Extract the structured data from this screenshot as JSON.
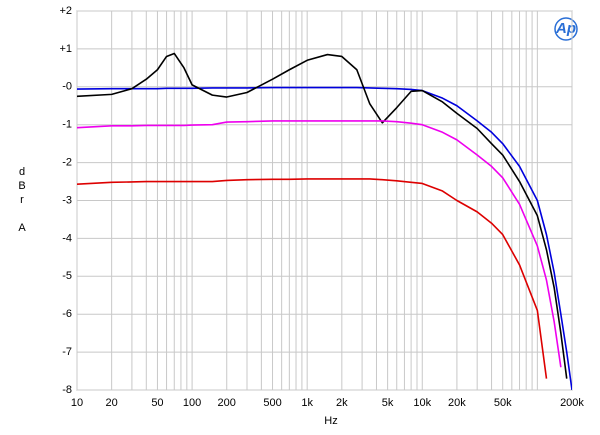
{
  "chart_data": {
    "type": "line",
    "logo": "Ap",
    "xlabel": "Hz",
    "ylabel": [
      "d",
      "B",
      "r",
      "A"
    ],
    "xscale": "log",
    "grid": true,
    "x": [
      10,
      20,
      30,
      40,
      50,
      60,
      70,
      85,
      100,
      150,
      200,
      300,
      500,
      700,
      1000,
      1500,
      2000,
      2700,
      3500,
      4500,
      6000,
      8000,
      10000,
      15000,
      20000,
      30000,
      40000,
      50000,
      70000,
      100000,
      120000,
      140000,
      160000,
      180000,
      200000
    ],
    "series": [
      {
        "color": "#0000dd",
        "values": [
          -0.06,
          -0.05,
          -0.05,
          -0.05,
          -0.05,
          -0.04,
          -0.04,
          -0.04,
          -0.04,
          -0.03,
          -0.03,
          -0.03,
          -0.02,
          -0.02,
          -0.02,
          -0.02,
          -0.02,
          -0.02,
          -0.03,
          -0.04,
          -0.05,
          -0.07,
          -0.1,
          -0.3,
          -0.5,
          -0.9,
          -1.2,
          -1.5,
          -2.1,
          -3.0,
          -3.9,
          -4.9,
          -6.0,
          -7.0,
          -8.0
        ]
      },
      {
        "color": "#000000",
        "values": [
          -0.25,
          -0.2,
          -0.05,
          0.2,
          0.45,
          0.8,
          0.88,
          0.5,
          0.05,
          -0.22,
          -0.27,
          -0.15,
          0.2,
          0.45,
          0.7,
          0.85,
          0.8,
          0.45,
          -0.45,
          -0.95,
          -0.55,
          -0.12,
          -0.1,
          -0.4,
          -0.7,
          -1.1,
          -1.5,
          -1.8,
          -2.5,
          -3.4,
          -4.3,
          -5.3,
          -6.5,
          -7.7,
          null
        ]
      },
      {
        "color": "#ee00ee",
        "values": [
          -1.08,
          -1.03,
          -1.03,
          -1.02,
          -1.02,
          -1.02,
          -1.02,
          -1.02,
          -1.01,
          -1.0,
          -0.93,
          -0.92,
          -0.9,
          -0.9,
          -0.9,
          -0.9,
          -0.9,
          -0.9,
          -0.9,
          -0.9,
          -0.92,
          -0.96,
          -1.0,
          -1.2,
          -1.4,
          -1.8,
          -2.1,
          -2.4,
          -3.1,
          -4.2,
          -5.1,
          -6.2,
          -7.4,
          null,
          null
        ]
      },
      {
        "color": "#dd0000",
        "values": [
          -2.57,
          -2.52,
          -2.51,
          -2.5,
          -2.5,
          -2.5,
          -2.5,
          -2.5,
          -2.5,
          -2.5,
          -2.47,
          -2.45,
          -2.44,
          -2.44,
          -2.43,
          -2.43,
          -2.43,
          -2.43,
          -2.43,
          -2.45,
          -2.48,
          -2.52,
          -2.55,
          -2.75,
          -3.0,
          -3.3,
          -3.6,
          -3.9,
          -4.7,
          -5.9,
          -7.7,
          null,
          null,
          null,
          null
        ]
      }
    ],
    "xlim": [
      10,
      200000
    ],
    "xticks": [
      10,
      20,
      50,
      100,
      200,
      500,
      {
        "value": 1000,
        "label": "1k"
      },
      {
        "value": 2000,
        "label": "2k"
      },
      {
        "value": 5000,
        "label": "5k"
      },
      {
        "value": 10000,
        "label": "10k"
      },
      {
        "value": 20000,
        "label": "20k"
      },
      {
        "value": 50000,
        "label": "50k"
      },
      {
        "value": 200000,
        "label": "200k"
      }
    ],
    "xminorticks": [
      30,
      40,
      60,
      70,
      80,
      90,
      300,
      400,
      600,
      700,
      800,
      900,
      3000,
      4000,
      6000,
      7000,
      8000,
      9000,
      30000,
      40000,
      60000,
      70000,
      80000,
      90000,
      100000
    ],
    "ylim": [
      -8,
      2
    ],
    "yticks": [
      {
        "value": 2,
        "label": "+2"
      },
      {
        "value": 1,
        "label": "+1"
      },
      {
        "value": 0,
        "label": "-0"
      },
      -1,
      -2,
      -3,
      -4,
      -5,
      -6,
      -7,
      -8
    ]
  }
}
